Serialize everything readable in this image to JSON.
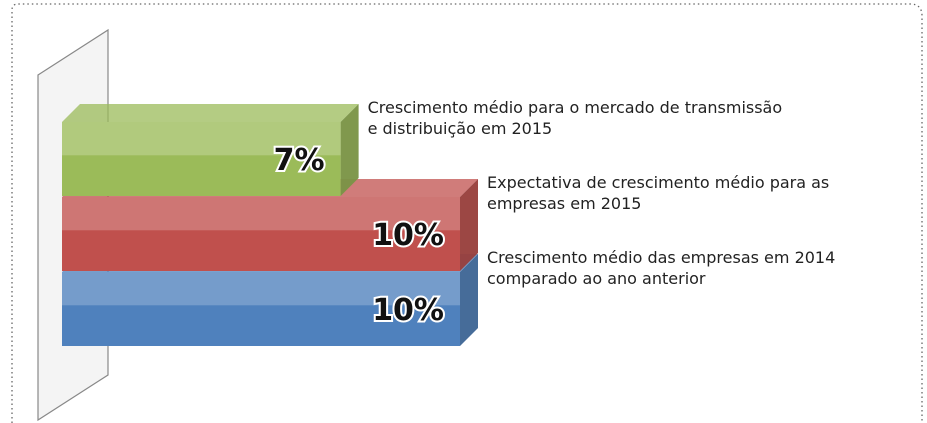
{
  "chart_data": {
    "type": "bar3d",
    "categories": [
      "Crescimento médio para o mercado de transmissão\ne distribuição em 2015",
      "Expectativa de crescimento médio para as\nempresas em 2015",
      "Crescimento médio das empresas em 2014\ncomparado ao ano anterior"
    ],
    "values": [
      7,
      10,
      10
    ],
    "value_labels": [
      "7%",
      "10%",
      "10%"
    ],
    "colors": [
      "#9bbb59",
      "#c0504d",
      "#4f81bd"
    ]
  }
}
